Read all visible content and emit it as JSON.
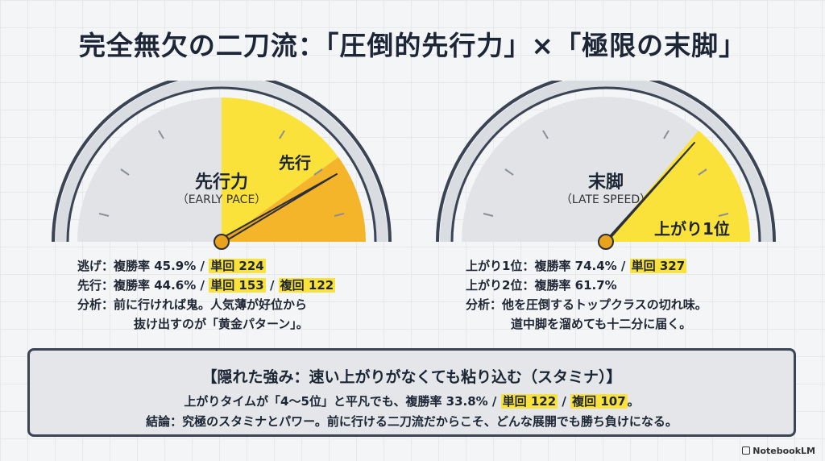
{
  "title": "完全無欠の二刀流：「圧倒的先行力」×「極限の末脚」",
  "gauges": [
    {
      "title": "先行力",
      "subtitle": "（EARLY PACE）",
      "zone_label": "先行",
      "stats": {
        "line1_prefix": "逃げ：複勝率 45.9% / ",
        "line1_hl1": "単回 224",
        "line2_prefix": "先行：複勝率 44.6% / ",
        "line2_hl1": "単回 153",
        "line2_sep": " / ",
        "line2_hl2": "複回 122",
        "line3": "分析：前に行ければ鬼。人気薄が好位から",
        "line4": "抜け出すのが「黄金パターン」。"
      }
    },
    {
      "title": "末脚",
      "subtitle": "（LATE SPEED）",
      "zone_label": "上がり1位",
      "stats": {
        "line1_prefix": "上がり1位：複勝率 74.4% / ",
        "line1_hl1": "単回 327",
        "line2": "上がり2位：複勝率 61.7%",
        "line3": "分析：他を圧倒するトップクラスの切れ味。",
        "line4": "道中脚を溜めても十二分に届く。"
      }
    }
  ],
  "box": {
    "title": "【隠れた強み：速い上がりがなくても粘り込む（スタミナ）】",
    "line1_prefix": "上がりタイムが「4〜5位」と平凡でも、複勝率 33.8% / ",
    "line1_hl1": "単回 122",
    "line1_sep": " / ",
    "line1_hl2": "複回 107",
    "line1_suffix": "。",
    "line2": "結論：究極のスタミナとパワー。前に行ける二刀流だからこそ、どんな展開でも勝ち負けになる。"
  },
  "brand": "NotebookLM",
  "colors": {
    "yellow": "#fbe23b",
    "orange": "#f5b52a",
    "gray_zone": "#e1e3e6",
    "frame": "#3b4454"
  }
}
